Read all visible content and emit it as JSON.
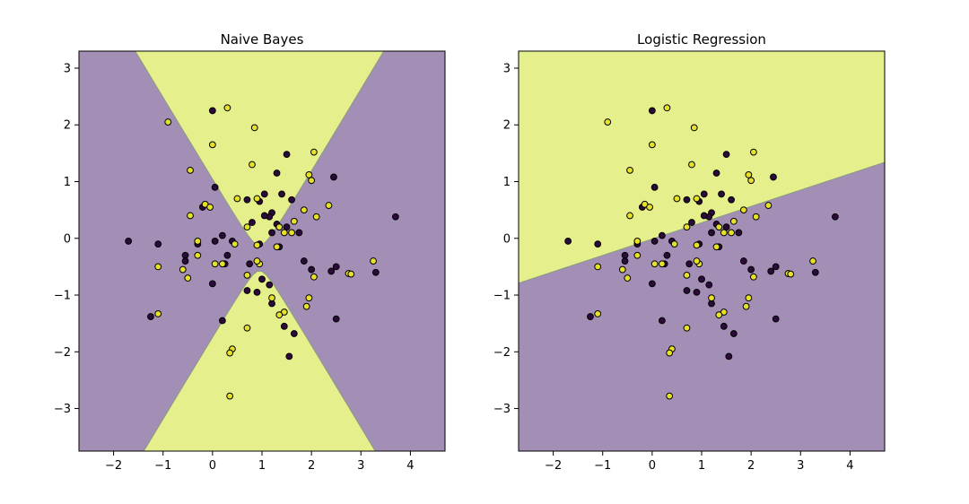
{
  "chart_data": [
    {
      "type": "scatter",
      "title": "Naive Bayes",
      "xlim": [
        -2.7,
        4.7
      ],
      "ylim": [
        -3.75,
        3.3
      ],
      "xticks": [
        -2,
        -1,
        0,
        1,
        2,
        3,
        4
      ],
      "yticks": [
        -3,
        -2,
        -1,
        0,
        1,
        2,
        3
      ],
      "x_tick_labels": [
        "−2",
        "−1",
        "0",
        "1",
        "2",
        "3",
        "4"
      ],
      "y_tick_labels": [
        "−3",
        "−2",
        "−1",
        "0",
        "1",
        "2",
        "3"
      ],
      "background": {
        "kind": "quadratic_boundary",
        "region_colors": {
          "class0": "#a38fb6",
          "class1": "#e5f08c"
        },
        "boundary_color": "#8a9a82",
        "center": [
          0.95,
          -0.35
        ],
        "slope": 1.45,
        "offset": 0.22
      },
      "series": [
        {
          "class": 0,
          "color": "#2c0a3a",
          "points": [
            [
              0.0,
              2.25
            ],
            [
              1.5,
              1.48
            ],
            [
              1.3,
              1.15
            ],
            [
              2.45,
              1.08
            ],
            [
              0.05,
              0.9
            ],
            [
              1.05,
              0.78
            ],
            [
              1.4,
              0.78
            ],
            [
              1.6,
              0.68
            ],
            [
              0.95,
              0.65
            ],
            [
              0.7,
              0.68
            ],
            [
              1.2,
              0.45
            ],
            [
              1.15,
              0.38
            ],
            [
              -0.2,
              0.55
            ],
            [
              0.8,
              0.28
            ],
            [
              1.05,
              0.4
            ],
            [
              1.3,
              0.25
            ],
            [
              1.5,
              0.2
            ],
            [
              1.75,
              0.1
            ],
            [
              1.2,
              0.1
            ],
            [
              0.2,
              0.05
            ],
            [
              0.05,
              -0.05
            ],
            [
              0.4,
              -0.05
            ],
            [
              0.95,
              -0.1
            ],
            [
              1.35,
              -0.15
            ],
            [
              1.85,
              -0.4
            ],
            [
              2.0,
              -0.55
            ],
            [
              2.5,
              -0.5
            ],
            [
              2.4,
              -0.58
            ],
            [
              3.3,
              -0.6
            ],
            [
              3.7,
              0.38
            ],
            [
              -0.3,
              -0.1
            ],
            [
              -0.55,
              -0.3
            ],
            [
              -1.7,
              -0.05
            ],
            [
              -1.1,
              -0.1
            ],
            [
              -0.55,
              -0.4
            ],
            [
              0.3,
              -0.3
            ],
            [
              0.25,
              -0.45
            ],
            [
              0.75,
              -0.45
            ],
            [
              1.0,
              -0.72
            ],
            [
              1.15,
              -0.82
            ],
            [
              0.0,
              -0.8
            ],
            [
              0.7,
              -0.92
            ],
            [
              0.9,
              -0.95
            ],
            [
              1.2,
              -1.15
            ],
            [
              1.45,
              -1.55
            ],
            [
              1.65,
              -1.68
            ],
            [
              1.55,
              -2.08
            ],
            [
              2.5,
              -1.42
            ],
            [
              0.2,
              -1.45
            ],
            [
              -1.25,
              -1.38
            ]
          ]
        },
        {
          "class": 1,
          "color": "#e6e02a",
          "points": [
            [
              -0.9,
              2.05
            ],
            [
              0.3,
              2.3
            ],
            [
              0.85,
              1.95
            ],
            [
              0.0,
              1.65
            ],
            [
              2.05,
              1.52
            ],
            [
              0.8,
              1.3
            ],
            [
              -0.45,
              1.2
            ],
            [
              1.95,
              1.12
            ],
            [
              2.0,
              1.02
            ],
            [
              0.5,
              0.7
            ],
            [
              0.9,
              0.7
            ],
            [
              -0.15,
              0.6
            ],
            [
              -0.05,
              0.55
            ],
            [
              2.35,
              0.58
            ],
            [
              1.85,
              0.5
            ],
            [
              -0.45,
              0.4
            ],
            [
              1.65,
              0.3
            ],
            [
              2.1,
              0.38
            ],
            [
              0.7,
              0.2
            ],
            [
              1.35,
              0.2
            ],
            [
              1.45,
              0.1
            ],
            [
              1.6,
              0.1
            ],
            [
              -0.3,
              -0.05
            ],
            [
              0.45,
              -0.1
            ],
            [
              0.9,
              -0.12
            ],
            [
              1.3,
              -0.15
            ],
            [
              -0.3,
              -0.3
            ],
            [
              0.05,
              -0.45
            ],
            [
              0.2,
              -0.45
            ],
            [
              0.95,
              -0.45
            ],
            [
              0.9,
              -0.4
            ],
            [
              -0.6,
              -0.55
            ],
            [
              -0.5,
              -0.7
            ],
            [
              -1.1,
              -0.5
            ],
            [
              0.7,
              -0.65
            ],
            [
              2.05,
              -0.68
            ],
            [
              2.75,
              -0.62
            ],
            [
              2.8,
              -0.63
            ],
            [
              3.25,
              -0.4
            ],
            [
              1.95,
              -1.05
            ],
            [
              1.9,
              -1.2
            ],
            [
              1.2,
              -1.05
            ],
            [
              1.45,
              -1.3
            ],
            [
              1.35,
              -1.35
            ],
            [
              0.7,
              -1.58
            ],
            [
              -1.1,
              -1.33
            ],
            [
              0.4,
              -1.95
            ],
            [
              0.35,
              -2.02
            ],
            [
              0.35,
              -2.78
            ]
          ]
        }
      ]
    },
    {
      "type": "scatter",
      "title": "Logistic Regression",
      "xlim": [
        -2.7,
        4.7
      ],
      "ylim": [
        -3.75,
        3.3
      ],
      "xticks": [
        -2,
        -1,
        0,
        1,
        2,
        3,
        4
      ],
      "yticks": [
        -3,
        -2,
        -1,
        0,
        1,
        2,
        3
      ],
      "x_tick_labels": [
        "−2",
        "−1",
        "0",
        "1",
        "2",
        "3",
        "4"
      ],
      "y_tick_labels": [
        "−3",
        "−2",
        "−1",
        "0",
        "1",
        "2",
        "3"
      ],
      "background": {
        "kind": "linear_boundary",
        "region_colors": {
          "class0": "#a38fb6",
          "class1": "#e5f08c"
        },
        "boundary_color": "#8a9a82",
        "boundary": [
          [
            -2.7,
            -0.79
          ],
          [
            4.7,
            1.34
          ]
        ]
      },
      "series": [
        {
          "class": 0,
          "color": "#2c0a3a",
          "points": [
            [
              0.0,
              2.25
            ],
            [
              1.5,
              1.48
            ],
            [
              1.3,
              1.15
            ],
            [
              2.45,
              1.08
            ],
            [
              0.05,
              0.9
            ],
            [
              1.05,
              0.78
            ],
            [
              1.4,
              0.78
            ],
            [
              1.6,
              0.68
            ],
            [
              0.95,
              0.65
            ],
            [
              0.7,
              0.68
            ],
            [
              1.2,
              0.45
            ],
            [
              1.15,
              0.38
            ],
            [
              -0.2,
              0.55
            ],
            [
              0.8,
              0.28
            ],
            [
              1.05,
              0.4
            ],
            [
              1.3,
              0.25
            ],
            [
              1.5,
              0.2
            ],
            [
              1.75,
              0.1
            ],
            [
              1.2,
              0.1
            ],
            [
              0.2,
              0.05
            ],
            [
              0.05,
              -0.05
            ],
            [
              0.4,
              -0.05
            ],
            [
              0.95,
              -0.1
            ],
            [
              1.35,
              -0.15
            ],
            [
              1.85,
              -0.4
            ],
            [
              2.0,
              -0.55
            ],
            [
              2.5,
              -0.5
            ],
            [
              2.4,
              -0.58
            ],
            [
              3.3,
              -0.6
            ],
            [
              3.7,
              0.38
            ],
            [
              -0.3,
              -0.1
            ],
            [
              -0.55,
              -0.3
            ],
            [
              -1.7,
              -0.05
            ],
            [
              -1.1,
              -0.1
            ],
            [
              -0.55,
              -0.4
            ],
            [
              0.3,
              -0.3
            ],
            [
              0.25,
              -0.45
            ],
            [
              0.75,
              -0.45
            ],
            [
              1.0,
              -0.72
            ],
            [
              1.15,
              -0.82
            ],
            [
              0.0,
              -0.8
            ],
            [
              0.7,
              -0.92
            ],
            [
              0.9,
              -0.95
            ],
            [
              1.2,
              -1.15
            ],
            [
              1.45,
              -1.55
            ],
            [
              1.65,
              -1.68
            ],
            [
              1.55,
              -2.08
            ],
            [
              2.5,
              -1.42
            ],
            [
              0.2,
              -1.45
            ],
            [
              -1.25,
              -1.38
            ]
          ]
        },
        {
          "class": 1,
          "color": "#e6e02a",
          "points": [
            [
              -0.9,
              2.05
            ],
            [
              0.3,
              2.3
            ],
            [
              0.85,
              1.95
            ],
            [
              0.0,
              1.65
            ],
            [
              2.05,
              1.52
            ],
            [
              0.8,
              1.3
            ],
            [
              -0.45,
              1.2
            ],
            [
              1.95,
              1.12
            ],
            [
              2.0,
              1.02
            ],
            [
              0.5,
              0.7
            ],
            [
              0.9,
              0.7
            ],
            [
              -0.15,
              0.6
            ],
            [
              -0.05,
              0.55
            ],
            [
              2.35,
              0.58
            ],
            [
              1.85,
              0.5
            ],
            [
              -0.45,
              0.4
            ],
            [
              1.65,
              0.3
            ],
            [
              2.1,
              0.38
            ],
            [
              0.7,
              0.2
            ],
            [
              1.35,
              0.2
            ],
            [
              1.45,
              0.1
            ],
            [
              1.6,
              0.1
            ],
            [
              -0.3,
              -0.05
            ],
            [
              0.45,
              -0.1
            ],
            [
              0.9,
              -0.12
            ],
            [
              1.3,
              -0.15
            ],
            [
              -0.3,
              -0.3
            ],
            [
              0.05,
              -0.45
            ],
            [
              0.2,
              -0.45
            ],
            [
              0.95,
              -0.45
            ],
            [
              0.9,
              -0.4
            ],
            [
              -0.6,
              -0.55
            ],
            [
              -0.5,
              -0.7
            ],
            [
              -1.1,
              -0.5
            ],
            [
              0.7,
              -0.65
            ],
            [
              2.05,
              -0.68
            ],
            [
              2.75,
              -0.62
            ],
            [
              2.8,
              -0.63
            ],
            [
              3.25,
              -0.4
            ],
            [
              1.95,
              -1.05
            ],
            [
              1.9,
              -1.2
            ],
            [
              1.2,
              -1.05
            ],
            [
              1.45,
              -1.3
            ],
            [
              1.35,
              -1.35
            ],
            [
              0.7,
              -1.58
            ],
            [
              -1.1,
              -1.33
            ],
            [
              0.4,
              -1.95
            ],
            [
              0.35,
              -2.02
            ],
            [
              0.35,
              -2.78
            ]
          ]
        }
      ]
    }
  ]
}
